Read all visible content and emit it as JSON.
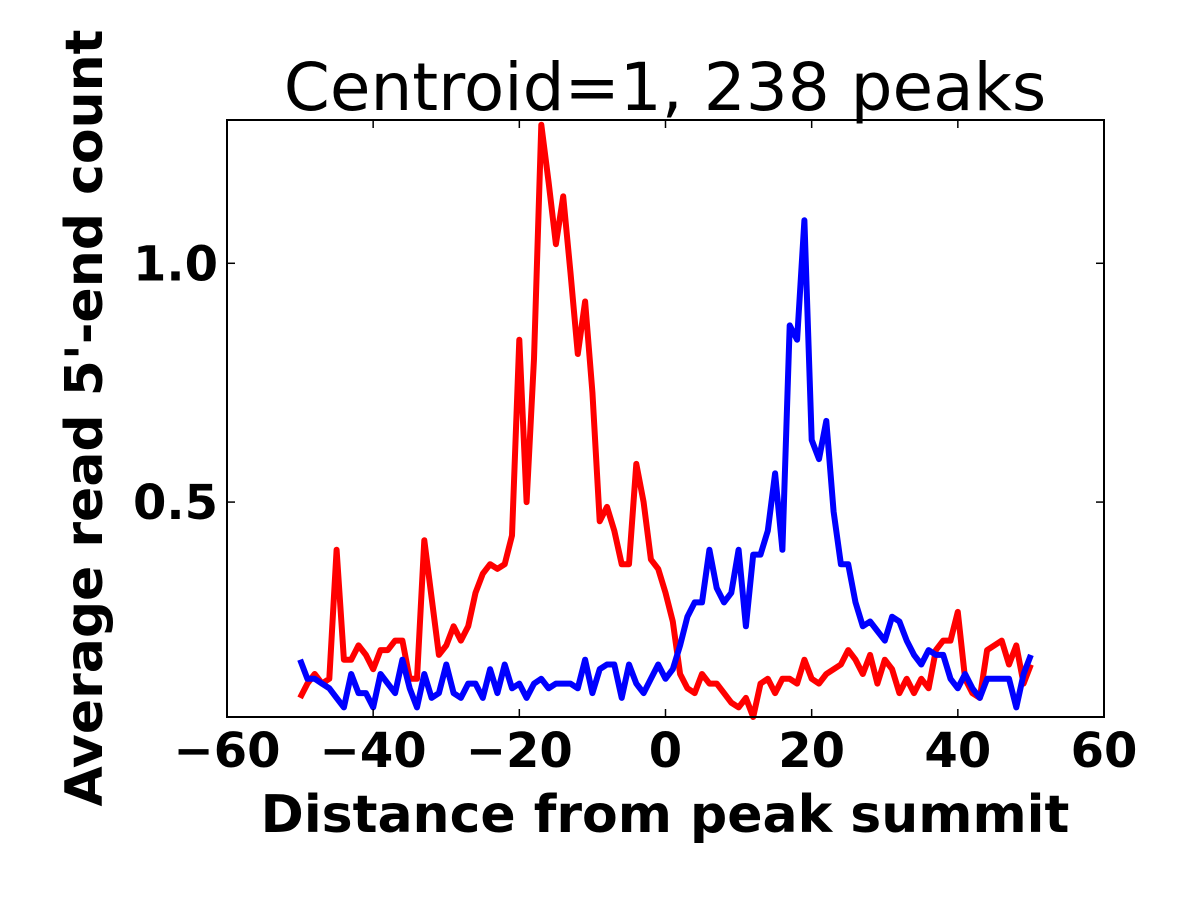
{
  "chart_data": {
    "type": "line",
    "title": "Centroid=1, 238 peaks",
    "xlabel": "Distance from peak summit",
    "ylabel": "Average read 5'-end count",
    "xlim": [
      -60,
      60
    ],
    "ylim": [
      0.05,
      1.3
    ],
    "xticks": [
      -60,
      -40,
      -20,
      0,
      20,
      40,
      60
    ],
    "xtick_labels": [
      "−60",
      "−40",
      "−20",
      "0",
      "20",
      "40",
      "60"
    ],
    "yticks": [
      0.5,
      1.0
    ],
    "ytick_labels": [
      "0.5",
      "1.0"
    ],
    "legend": "none",
    "grid": false,
    "x": [
      -50,
      -49,
      -48,
      -47,
      -46,
      -45,
      -44,
      -43,
      -42,
      -41,
      -40,
      -39,
      -38,
      -37,
      -36,
      -35,
      -34,
      -33,
      -32,
      -31,
      -30,
      -29,
      -28,
      -27,
      -26,
      -25,
      -24,
      -23,
      -22,
      -21,
      -20,
      -19,
      -18,
      -17,
      -16,
      -15,
      -14,
      -13,
      -12,
      -11,
      -10,
      -9,
      -8,
      -7,
      -6,
      -5,
      -4,
      -3,
      -2,
      -1,
      0,
      1,
      2,
      3,
      4,
      5,
      6,
      7,
      8,
      9,
      10,
      11,
      12,
      13,
      14,
      15,
      16,
      17,
      18,
      19,
      20,
      21,
      22,
      23,
      24,
      25,
      26,
      27,
      28,
      29,
      30,
      31,
      32,
      33,
      34,
      35,
      36,
      37,
      38,
      39,
      40,
      41,
      42,
      43,
      44,
      45,
      46,
      47,
      48,
      49,
      50
    ],
    "series": [
      {
        "name": "red",
        "color": "#ff0000",
        "values": [
          0.09,
          0.12,
          0.14,
          0.12,
          0.13,
          0.4,
          0.17,
          0.17,
          0.2,
          0.18,
          0.15,
          0.19,
          0.19,
          0.21,
          0.21,
          0.13,
          0.13,
          0.42,
          0.3,
          0.18,
          0.2,
          0.24,
          0.21,
          0.24,
          0.31,
          0.35,
          0.37,
          0.36,
          0.37,
          0.43,
          0.84,
          0.5,
          0.8,
          1.29,
          1.17,
          1.04,
          1.14,
          0.98,
          0.81,
          0.92,
          0.73,
          0.46,
          0.49,
          0.44,
          0.37,
          0.37,
          0.58,
          0.5,
          0.38,
          0.36,
          0.31,
          0.25,
          0.14,
          0.11,
          0.1,
          0.14,
          0.12,
          0.12,
          0.1,
          0.08,
          0.07,
          0.09,
          0.05,
          0.12,
          0.13,
          0.1,
          0.13,
          0.13,
          0.12,
          0.17,
          0.13,
          0.12,
          0.14,
          0.15,
          0.16,
          0.19,
          0.17,
          0.14,
          0.18,
          0.12,
          0.17,
          0.15,
          0.1,
          0.13,
          0.1,
          0.13,
          0.11,
          0.19,
          0.21,
          0.21,
          0.27,
          0.13,
          0.1,
          0.09,
          0.19,
          0.2,
          0.21,
          0.16,
          0.2,
          0.12,
          0.16
        ]
      },
      {
        "name": "blue",
        "color": "#0000ff",
        "values": [
          0.17,
          0.13,
          0.13,
          0.12,
          0.11,
          0.09,
          0.07,
          0.14,
          0.1,
          0.1,
          0.07,
          0.14,
          0.12,
          0.1,
          0.17,
          0.11,
          0.07,
          0.14,
          0.09,
          0.1,
          0.16,
          0.1,
          0.09,
          0.12,
          0.12,
          0.09,
          0.15,
          0.1,
          0.16,
          0.11,
          0.12,
          0.09,
          0.12,
          0.13,
          0.11,
          0.12,
          0.12,
          0.12,
          0.11,
          0.17,
          0.1,
          0.15,
          0.16,
          0.16,
          0.09,
          0.16,
          0.12,
          0.1,
          0.13,
          0.16,
          0.13,
          0.15,
          0.2,
          0.26,
          0.29,
          0.29,
          0.4,
          0.32,
          0.29,
          0.31,
          0.4,
          0.24,
          0.39,
          0.39,
          0.44,
          0.56,
          0.4,
          0.87,
          0.84,
          1.09,
          0.63,
          0.59,
          0.67,
          0.48,
          0.37,
          0.37,
          0.29,
          0.24,
          0.25,
          0.23,
          0.21,
          0.26,
          0.25,
          0.21,
          0.18,
          0.16,
          0.19,
          0.18,
          0.18,
          0.13,
          0.11,
          0.14,
          0.11,
          0.09,
          0.13,
          0.13,
          0.13,
          0.13,
          0.07,
          0.14,
          0.18
        ]
      }
    ]
  }
}
